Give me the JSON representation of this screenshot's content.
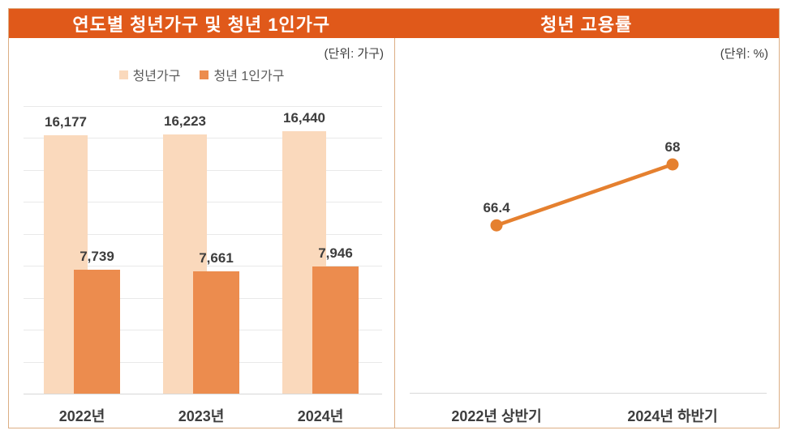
{
  "frame": {
    "border_color": "#DCAE84",
    "header_color": "#E0591A",
    "header_text_color": "#FFFFFF"
  },
  "left_panel": {
    "title": "연도별 청년가구 및 청년 1인가구",
    "unit": "(단위: 가구)"
  },
  "right_panel": {
    "title": "청년 고용률",
    "unit": "(단위: %)"
  },
  "colors": {
    "bar_light": "#FAD9BC",
    "bar_dark": "#EC8C4E",
    "line_orange": "#E5802F",
    "gridline": "#E9E9E9",
    "baseline": "#D8D8D8",
    "text_dark": "#3D3D3D"
  },
  "chart_data": [
    {
      "type": "bar",
      "title": "연도별 청년가구 및 청년 1인가구",
      "unit_label": "(단위: 가구)",
      "categories": [
        "2022년",
        "2023년",
        "2024년"
      ],
      "series": [
        {
          "name": "청년가구",
          "values": [
            16177,
            16223,
            16440
          ],
          "labels": [
            "16,177",
            "16,223",
            "16,440"
          ],
          "color": "#FAD9BC"
        },
        {
          "name": "청년 1인가구",
          "values": [
            7739,
            7661,
            7946
          ],
          "labels": [
            "7,739",
            "7,661",
            "7,946"
          ],
          "color": "#EC8C4E"
        }
      ],
      "ylim": [
        0,
        18000
      ],
      "grid_step": 2000,
      "grid": true,
      "legend_position": "top-center",
      "bar_style": "overlapped-pairs",
      "value_labels": "above-bars"
    },
    {
      "type": "line",
      "title": "청년 고용률",
      "unit_label": "(단위: %)",
      "categories": [
        "2022년 상반기",
        "2024년 하반기"
      ],
      "values": [
        66.4,
        68
      ],
      "labels": [
        "66.4",
        "68"
      ],
      "ylim": [
        62,
        70
      ],
      "color": "#E5802F",
      "marker": "circle",
      "grid": false,
      "value_labels": "above-points"
    }
  ]
}
